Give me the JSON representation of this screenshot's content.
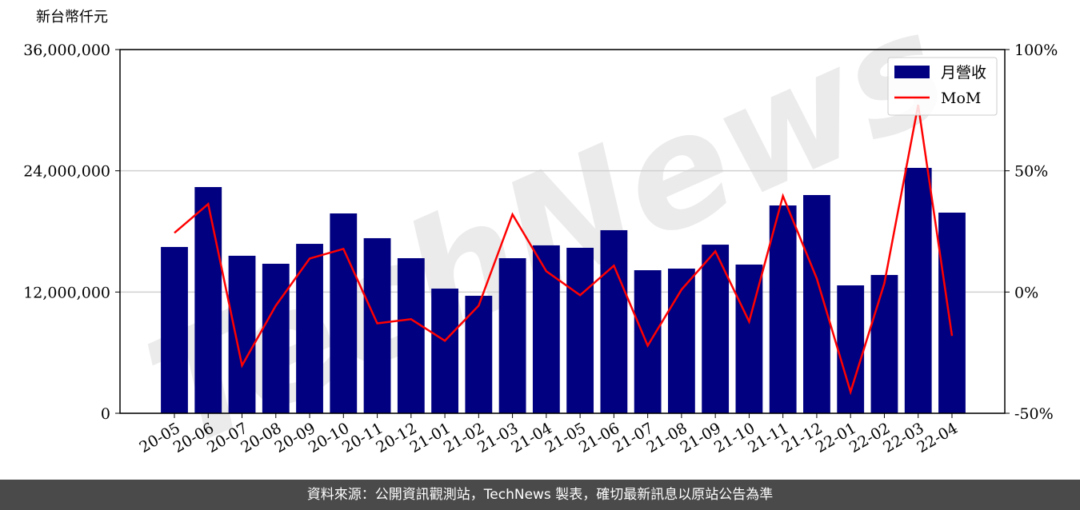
{
  "chart_data": {
    "type": "bar-line",
    "y_label": "新台幣仟元",
    "watermark": "TechNews",
    "categories": [
      "20-05",
      "20-06",
      "20-07",
      "20-08",
      "20-09",
      "20-10",
      "20-11",
      "20-12",
      "21-01",
      "21-02",
      "21-03",
      "21-04",
      "21-05",
      "21-06",
      "21-07",
      "21-08",
      "21-09",
      "21-10",
      "21-11",
      "21-12",
      "22-01",
      "22-02",
      "22-03",
      "22-04"
    ],
    "series": [
      {
        "name": "月營收",
        "type": "bar",
        "color": "#000080",
        "values": [
          16460000,
          22390000,
          15590000,
          14800000,
          16770000,
          19780000,
          17330000,
          15350000,
          12340000,
          11630000,
          15350000,
          16620000,
          16380000,
          18120000,
          14160000,
          14320000,
          16690000,
          14720000,
          20570000,
          21600000,
          12660000,
          13690000,
          24290000,
          19860000
        ]
      },
      {
        "name": "MoM",
        "type": "line",
        "axis": "y2",
        "color": "#ff0000",
        "values": [
          24.4,
          36.3,
          -30.3,
          -5.6,
          13.8,
          17.8,
          -12.9,
          -11.2,
          -20.1,
          -5.6,
          32.0,
          8.6,
          -1.3,
          10.9,
          -22.1,
          1.0,
          16.8,
          -12.2,
          39.6,
          5.6,
          -41.2,
          3.6,
          77.2,
          -18.1
        ]
      }
    ],
    "ylim": [
      0,
      36000000
    ],
    "yticks": [
      {
        "value": 0,
        "label": "0"
      },
      {
        "value": 12000000,
        "label": "12,000,000"
      },
      {
        "value": 24000000,
        "label": "24,000,000"
      },
      {
        "value": 36000000,
        "label": "36,000,000"
      }
    ],
    "y2lim": [
      -50,
      100
    ],
    "y2ticks": [
      {
        "value": -50,
        "label": "-50%"
      },
      {
        "value": 0,
        "label": "0%"
      },
      {
        "value": 50,
        "label": "50%"
      },
      {
        "value": 100,
        "label": "100%"
      }
    ],
    "grid": true,
    "legend": "upper right"
  },
  "footer": "資料來源：公開資訊觀測站，TechNews 製表，確切最新訊息以原站公告為準"
}
